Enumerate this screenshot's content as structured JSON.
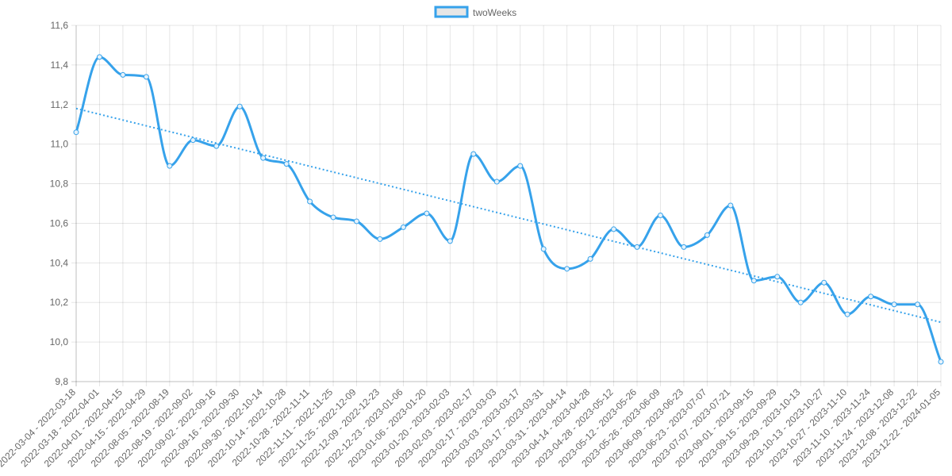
{
  "chart_data": {
    "type": "line",
    "title": "",
    "xlabel": "",
    "ylabel": "",
    "ylim": [
      9.8,
      11.6
    ],
    "y_step": 0.2,
    "y_tick_labels": [
      "9,8",
      "10,0",
      "10,2",
      "10,4",
      "10,6",
      "10,8",
      "11,0",
      "11,2",
      "11,4",
      "11,6"
    ],
    "grid": true,
    "legend_position": "top",
    "categories": [
      "2022-03-04 - 2022-03-18",
      "2022-03-18 - 2022-04-01",
      "2022-04-01 - 2022-04-15",
      "2022-04-15 - 2022-04-29",
      "2022-08-05 - 2022-08-19",
      "2022-08-19 - 2022-09-02",
      "2022-09-02 - 2022-09-16",
      "2022-09-16 - 2022-09-30",
      "2022-09-30 - 2022-10-14",
      "2022-10-14 - 2022-10-28",
      "2022-10-28 - 2022-11-11",
      "2022-11-11 - 2022-11-25",
      "2022-11-25 - 2022-12-09",
      "2022-12-09 - 2022-12-23",
      "2022-12-23 - 2023-01-06",
      "2023-01-06 - 2023-01-20",
      "2023-01-20 - 2023-02-03",
      "2023-02-03 - 2023-02-17",
      "2023-02-17 - 2023-03-03",
      "2023-03-03 - 2023-03-17",
      "2023-03-17 - 2023-03-31",
      "2023-03-31 - 2023-04-14",
      "2023-04-14 - 2023-04-28",
      "2023-04-28 - 2023-05-12",
      "2023-05-12 - 2023-05-26",
      "2023-05-26 - 2023-06-09",
      "2023-06-09 - 2023-06-23",
      "2023-06-23 - 2023-07-07",
      "2023-07-07 - 2023-07-21",
      "2023-09-01 - 2023-09-15",
      "2023-09-15 - 2023-09-29",
      "2023-09-29 - 2023-10-13",
      "2023-10-13 - 2023-10-27",
      "2023-10-27 - 2023-11-10",
      "2023-11-10 - 2023-11-24",
      "2023-11-24 - 2023-12-08",
      "2023-12-08 - 2023-12-22",
      "2023-12-22 - 2024-01-05"
    ],
    "series": [
      {
        "name": "twoWeeks",
        "color": "#36a2eb",
        "values": [
          11.06,
          11.44,
          11.35,
          11.34,
          10.89,
          11.02,
          10.99,
          11.19,
          10.93,
          10.9,
          10.71,
          10.63,
          10.61,
          10.52,
          10.58,
          10.65,
          10.51,
          10.95,
          10.81,
          10.89,
          10.47,
          10.37,
          10.42,
          10.57,
          10.48,
          10.64,
          10.48,
          10.54,
          10.69,
          10.31,
          10.33,
          10.2,
          10.3,
          10.14,
          10.23,
          10.19,
          10.19,
          9.9
        ]
      }
    ],
    "trendline": {
      "style": "dotted",
      "color": "#36a2eb",
      "start": 11.18,
      "end": 10.1
    }
  }
}
